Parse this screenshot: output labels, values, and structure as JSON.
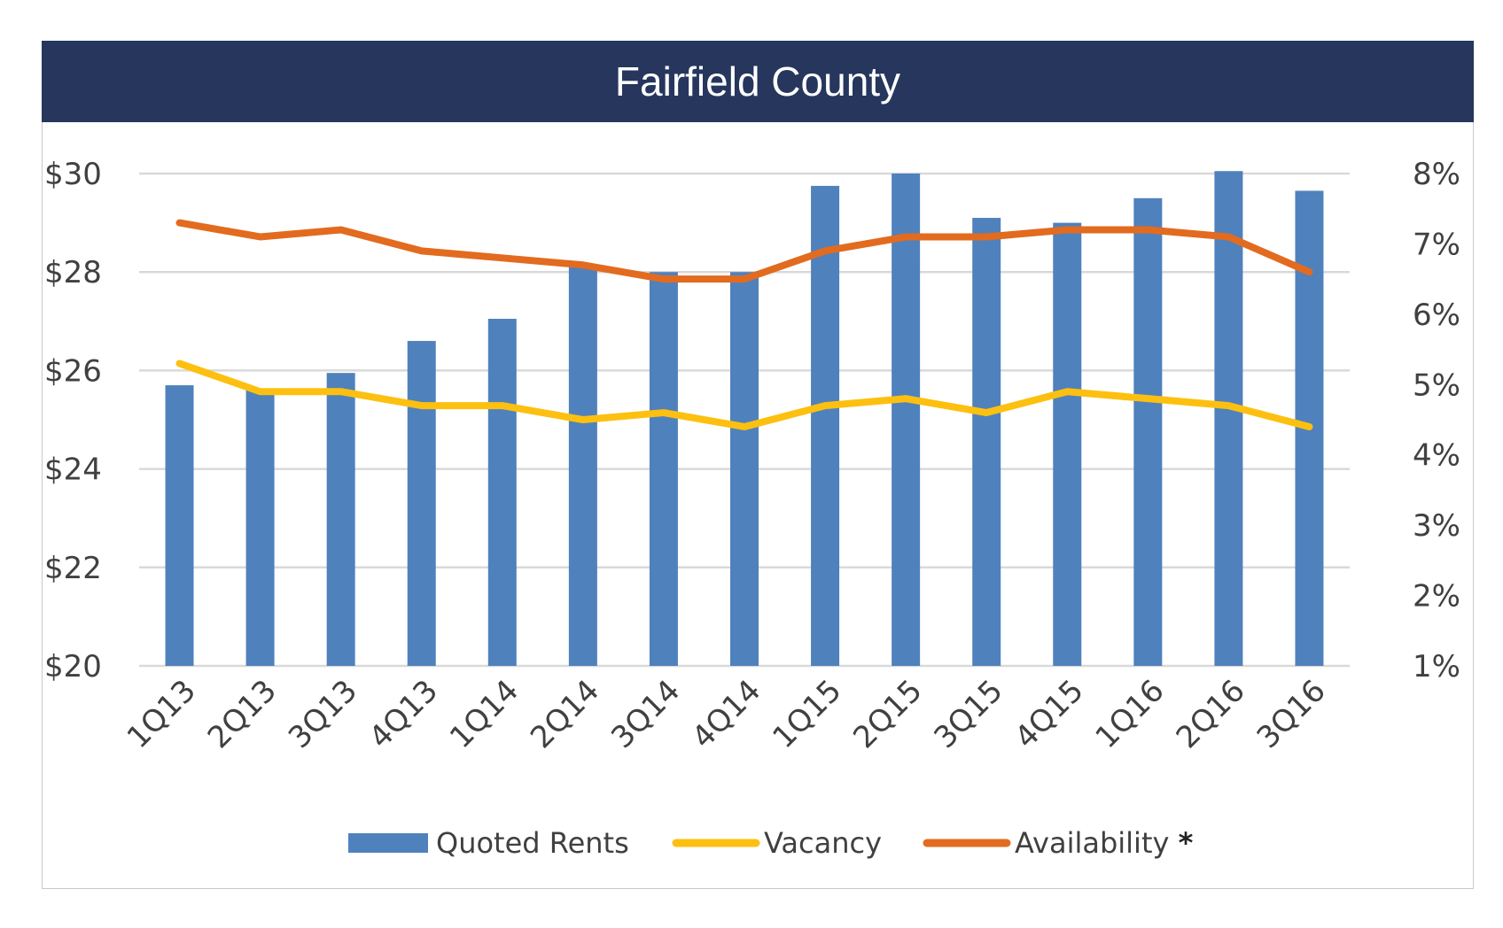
{
  "colors": {
    "title_bg": "#26365d",
    "bars": "#4f81bd",
    "vacancy": "#fdc010",
    "availability": "#e26b1f",
    "grid": "#d9d9d9"
  },
  "chart_data": {
    "type": "bar",
    "title": "Fairfield County",
    "categories": [
      "1Q13",
      "2Q13",
      "3Q13",
      "4Q13",
      "1Q14",
      "2Q14",
      "3Q14",
      "4Q14",
      "1Q15",
      "2Q15",
      "3Q15",
      "4Q15",
      "1Q16",
      "2Q16",
      "3Q16"
    ],
    "y_left": {
      "ylim": [
        20,
        30
      ],
      "ticks": [
        20,
        22,
        24,
        26,
        28,
        30
      ],
      "tick_labels": [
        "$20",
        "$22",
        "$24",
        "$26",
        "$28",
        "$30"
      ]
    },
    "y_right": {
      "ylim": [
        1,
        8
      ],
      "ticks": [
        1,
        2,
        3,
        4,
        5,
        6,
        7,
        8
      ],
      "tick_labels": [
        "1%",
        "2%",
        "3%",
        "4%",
        "5%",
        "6%",
        "7%",
        "8%"
      ]
    },
    "grid": true,
    "legend_position": "bottom",
    "series": [
      {
        "name": "Quoted Rents",
        "kind": "bar",
        "axis": "left",
        "values": [
          25.7,
          25.6,
          25.95,
          26.6,
          27.05,
          28.1,
          28.0,
          28.0,
          29.75,
          30.0,
          29.1,
          29.0,
          29.5,
          30.05,
          29.65
        ]
      },
      {
        "name": "Vacancy",
        "kind": "line",
        "axis": "right",
        "values": [
          5.3,
          4.9,
          4.9,
          4.7,
          4.7,
          4.5,
          4.6,
          4.4,
          4.7,
          4.8,
          4.6,
          4.9,
          4.8,
          4.7,
          4.4
        ]
      },
      {
        "name": "Availability",
        "legend_suffix": "*",
        "kind": "line",
        "axis": "right",
        "values": [
          7.3,
          7.1,
          7.2,
          6.9,
          6.8,
          6.7,
          6.5,
          6.5,
          6.9,
          7.1,
          7.1,
          7.2,
          7.2,
          7.1,
          6.6
        ]
      }
    ]
  }
}
